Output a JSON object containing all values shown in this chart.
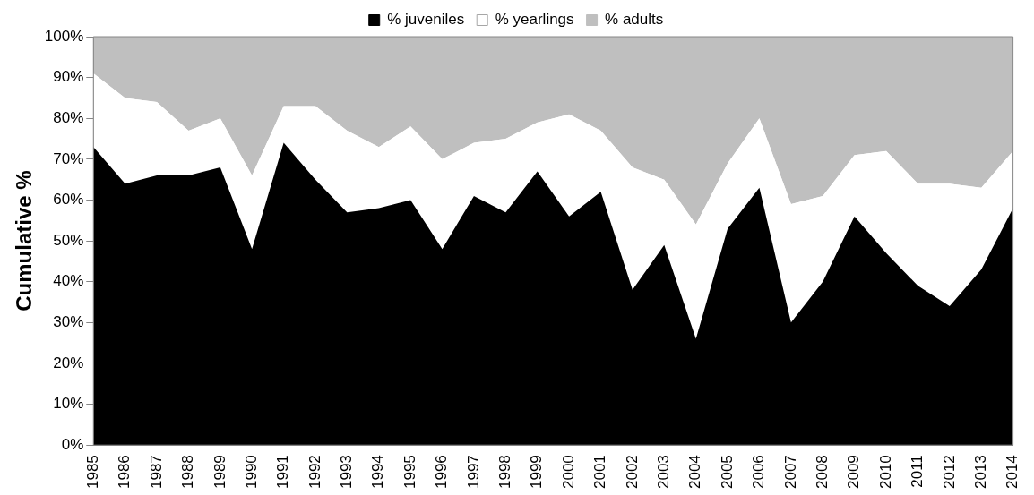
{
  "chart_data": {
    "type": "area",
    "stacked": true,
    "ylabel": "Cumulative %",
    "categories": [
      "1985",
      "1986",
      "1987",
      "1988",
      "1989",
      "1990",
      "1991",
      "1992",
      "1993",
      "1994",
      "1995",
      "1996",
      "1997",
      "1998",
      "1999",
      "2000",
      "2001",
      "2002",
      "2003",
      "2004",
      "2005",
      "2006",
      "2007",
      "2008",
      "2009",
      "2010",
      "2011",
      "2012",
      "2013",
      "2014"
    ],
    "series": [
      {
        "name": "% juveniles",
        "color": "#000000",
        "values": [
          73,
          64,
          66,
          66,
          68,
          48,
          74,
          65,
          57,
          58,
          60,
          48,
          61,
          57,
          67,
          56,
          62,
          38,
          49,
          26,
          53,
          63,
          30,
          40,
          56,
          47,
          39,
          34,
          43,
          58
        ]
      },
      {
        "name": "% yearlings",
        "color": "#ffffff",
        "values": [
          18,
          21,
          18,
          11,
          12,
          18,
          9,
          18,
          20,
          15,
          18,
          22,
          13,
          18,
          12,
          25,
          15,
          30,
          16,
          28,
          16,
          17,
          29,
          21,
          15,
          25,
          25,
          30,
          20,
          14
        ]
      },
      {
        "name": "% adults",
        "color": "#bfbfbf",
        "values": [
          9,
          15,
          16,
          23,
          20,
          34,
          17,
          17,
          23,
          27,
          22,
          30,
          26,
          25,
          21,
          19,
          23,
          32,
          35,
          46,
          31,
          20,
          41,
          39,
          29,
          28,
          36,
          36,
          37,
          28
        ]
      }
    ],
    "ylim": [
      0,
      100
    ],
    "yticks": [
      {
        "value": 0,
        "label": "0%"
      },
      {
        "value": 10,
        "label": "10%"
      },
      {
        "value": 20,
        "label": "20%"
      },
      {
        "value": 30,
        "label": "30%"
      },
      {
        "value": 40,
        "label": "40%"
      },
      {
        "value": 50,
        "label": "50%"
      },
      {
        "value": 60,
        "label": "60%"
      },
      {
        "value": 70,
        "label": "70%"
      },
      {
        "value": 80,
        "label": "80%"
      },
      {
        "value": 90,
        "label": "90%"
      },
      {
        "value": 100,
        "label": "100%"
      }
    ],
    "grid": false,
    "legend": "top"
  }
}
